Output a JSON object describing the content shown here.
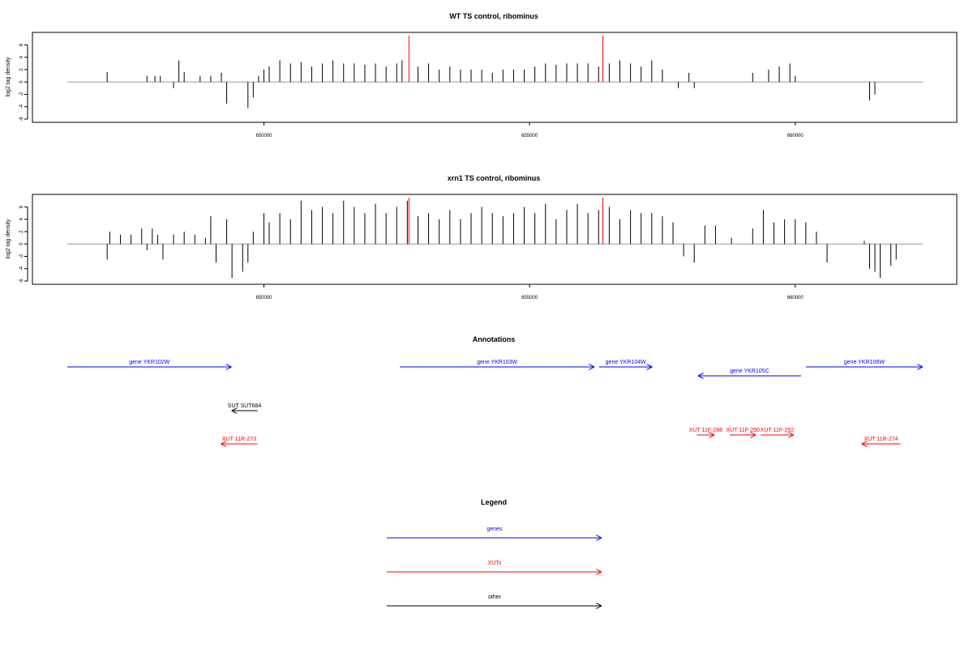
{
  "chart_data": [
    {
      "type": "bar",
      "title": "WT TS control, ribominus",
      "ylabel": "log2 tag density",
      "xlim": [
        646300,
        662400
      ],
      "ylim": [
        -6,
        7.5
      ],
      "yticks": [
        6,
        4,
        2,
        0,
        -2,
        -4,
        -6
      ],
      "xticks": [
        650000,
        655000,
        660000
      ],
      "xtick_labels": [
        "650000",
        "655000",
        "660000"
      ],
      "markers": [
        652730,
        656380
      ],
      "marker_color": "#ff0000",
      "series": [
        {
          "x": [
            647050,
            647800,
            647950,
            648050,
            648300,
            648400,
            648500,
            648800,
            649000,
            649200,
            649300,
            649700,
            649800,
            649900,
            650000,
            650100,
            650300,
            650500,
            650700,
            650900,
            651100,
            651300,
            651500,
            651700,
            651900,
            652100,
            652300,
            652500,
            652600,
            652900,
            653100,
            653300,
            653500,
            653700,
            653900,
            654100,
            654300,
            654500,
            654700,
            654900,
            655100,
            655300,
            655500,
            655700,
            655900,
            656100,
            656300,
            656500,
            656700,
            656900,
            657100,
            657300,
            657500,
            657800,
            658000,
            658100,
            659200,
            659500,
            659700,
            659900,
            660000,
            661400,
            661500
          ],
          "values": [
            1.6,
            1.0,
            1.0,
            1.0,
            -1.0,
            3.5,
            1.6,
            1.0,
            1.0,
            1.5,
            -3.5,
            -4.2,
            -2.5,
            1.0,
            2.0,
            2.5,
            3.5,
            3.0,
            3.2,
            2.5,
            3.0,
            3.5,
            3.0,
            3.0,
            2.8,
            3.0,
            2.5,
            3.0,
            3.5,
            2.5,
            3.0,
            2.0,
            2.5,
            2.0,
            2.0,
            2.0,
            1.5,
            2.0,
            2.0,
            2.0,
            2.5,
            3.0,
            2.8,
            3.0,
            3.0,
            3.0,
            2.5,
            3.0,
            3.5,
            3.0,
            2.5,
            3.5,
            2.0,
            -1.0,
            1.5,
            -1.0,
            1.5,
            2.0,
            2.5,
            3.0,
            1.0,
            -3.0,
            -2.0
          ]
        }
      ]
    },
    {
      "type": "bar",
      "title": "xrn1 TS control, ribominus",
      "ylabel": "log2 tag density",
      "xlim": [
        646300,
        662400
      ],
      "ylim": [
        -6,
        7.5
      ],
      "yticks": [
        6,
        4,
        2,
        0,
        -2,
        -4,
        -6
      ],
      "xticks": [
        650000,
        655000,
        660000
      ],
      "xtick_labels": [
        "650000",
        "655000",
        "660000"
      ],
      "markers": [
        652730,
        656380
      ],
      "marker_color": "#ff0000",
      "series": [
        {
          "x": [
            647050,
            647100,
            647300,
            647500,
            647700,
            647800,
            647900,
            648000,
            648100,
            648300,
            648500,
            648700,
            648900,
            649000,
            649100,
            649300,
            649400,
            649600,
            649700,
            649800,
            650000,
            650100,
            650300,
            650500,
            650700,
            650900,
            651100,
            651300,
            651500,
            651700,
            651900,
            652100,
            652300,
            652500,
            652700,
            652900,
            653100,
            653300,
            653500,
            653700,
            653900,
            654100,
            654300,
            654500,
            654700,
            654900,
            655100,
            655300,
            655500,
            655700,
            655900,
            656100,
            656300,
            656500,
            656700,
            656900,
            657100,
            657300,
            657500,
            657700,
            657900,
            658100,
            658300,
            658500,
            658800,
            659200,
            659400,
            659600,
            659800,
            660000,
            660200,
            660400,
            660600,
            661300,
            661400,
            661500,
            661600,
            661800,
            661900
          ],
          "values": [
            -2.5,
            2.0,
            1.5,
            1.5,
            2.5,
            -1.0,
            2.5,
            1.5,
            -2.5,
            1.5,
            2.0,
            1.5,
            1.0,
            4.5,
            -3.0,
            4.0,
            -5.5,
            -4.5,
            -3.0,
            2.0,
            5.0,
            3.5,
            5.0,
            4.0,
            7.0,
            5.5,
            6.0,
            5.0,
            7.0,
            6.0,
            5.0,
            6.5,
            5.0,
            6.0,
            7.0,
            4.5,
            5.0,
            4.0,
            5.5,
            4.0,
            5.0,
            6.0,
            5.0,
            4.5,
            5.0,
            6.0,
            5.0,
            6.5,
            4.0,
            5.5,
            6.5,
            5.0,
            5.5,
            6.0,
            4.0,
            5.5,
            5.0,
            5.0,
            4.5,
            3.5,
            -2.0,
            -3.0,
            3.0,
            3.0,
            1.0,
            2.5,
            5.5,
            3.5,
            4.0,
            4.0,
            3.5,
            2.0,
            -3.0,
            0.5,
            -4.0,
            -4.5,
            -5.5,
            -3.5,
            -2.5
          ]
        }
      ]
    }
  ],
  "annotations": {
    "title": "Annotations",
    "xlim": [
      646300,
      662400
    ],
    "features": [
      {
        "label": "gene YKR102W",
        "start": 646300,
        "end": 649390,
        "direction": "right",
        "color": "#0000ff",
        "row": 0
      },
      {
        "label": "gene YKR103W",
        "start": 652560,
        "end": 656220,
        "direction": "right",
        "color": "#0000ff",
        "row": 0
      },
      {
        "label": "gene YKR104W",
        "start": 656310,
        "end": 657310,
        "direction": "right",
        "color": "#0000ff",
        "row": 0
      },
      {
        "label": "gene YKR105C",
        "start": 658170,
        "end": 660110,
        "direction": "left",
        "color": "#0000ff",
        "row": 1
      },
      {
        "label": "gene YKR106W",
        "start": 660200,
        "end": 662400,
        "direction": "right",
        "color": "#0000ff",
        "row": 0
      },
      {
        "label": "SUT SUT684",
        "start": 649390,
        "end": 649880,
        "direction": "left",
        "color": "#000000",
        "row": 2
      },
      {
        "label": "XUT 11R-273",
        "start": 649190,
        "end": 649880,
        "direction": "left",
        "color": "#ff0000",
        "row": 4
      },
      {
        "label": "XUT 11F-288",
        "start": 658150,
        "end": 658480,
        "direction": "right",
        "color": "#ff0000",
        "row": 3
      },
      {
        "label": "XUT 11F-290",
        "start": 658770,
        "end": 659260,
        "direction": "right",
        "color": "#ff0000",
        "row": 3
      },
      {
        "label": "XUT 11F-292",
        "start": 659350,
        "end": 659970,
        "direction": "right",
        "color": "#ff0000",
        "row": 3
      },
      {
        "label": "XUT 11R-274",
        "start": 661250,
        "end": 661980,
        "direction": "left",
        "color": "#ff0000",
        "row": 4
      }
    ]
  },
  "legend": {
    "title": "Legend",
    "items": [
      {
        "label": "genes",
        "color": "#0000ff"
      },
      {
        "label": "XUTs",
        "color": "#ff0000"
      },
      {
        "label": "other",
        "color": "#000000"
      }
    ]
  }
}
